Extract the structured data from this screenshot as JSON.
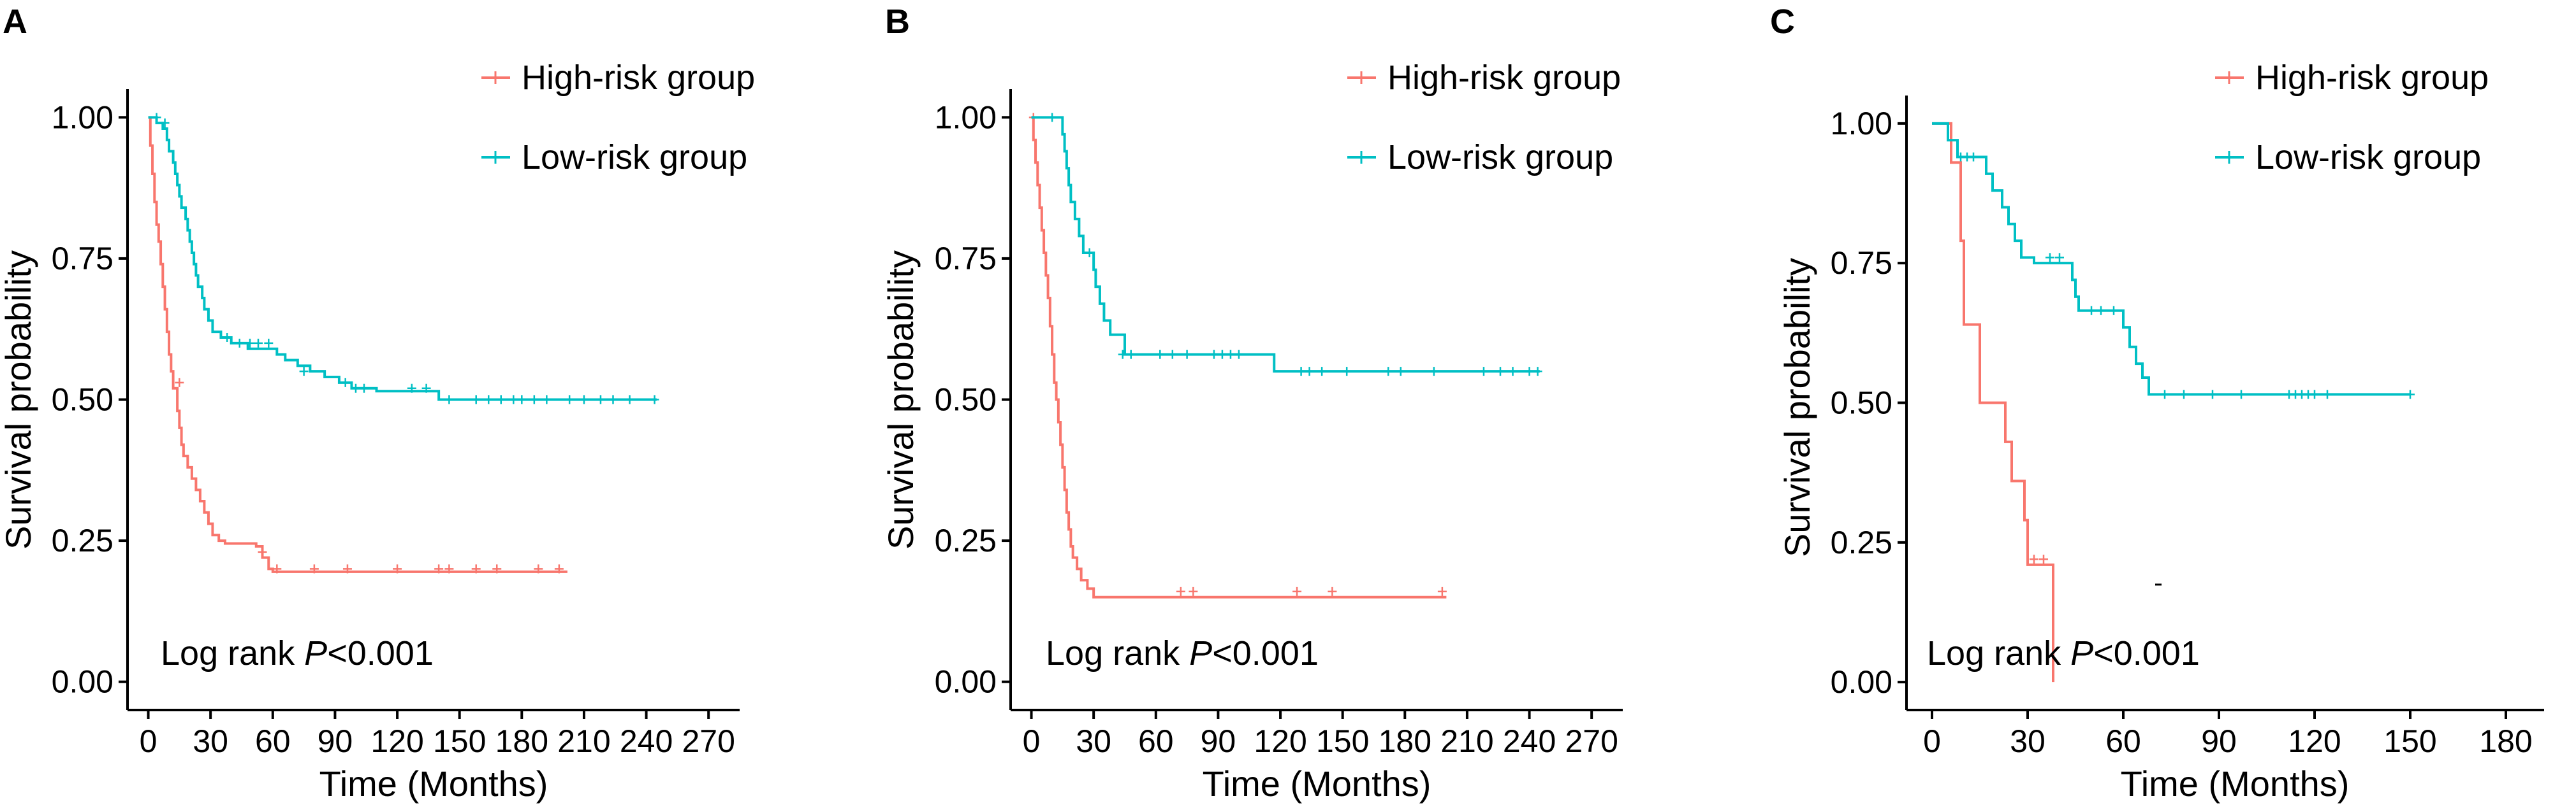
{
  "colors": {
    "high": "#F8766D",
    "low": "#00BFC4",
    "axis": "#000000"
  },
  "chart_data": [
    {
      "type": "line",
      "panel_label": "A",
      "xlabel": "Time (Months)",
      "ylabel": "Survival probability",
      "xticks": [
        0,
        30,
        60,
        90,
        120,
        150,
        180,
        210,
        240,
        270
      ],
      "xtick_labels": [
        "0",
        "30",
        "60",
        "90",
        "120",
        "150",
        "180",
        "210",
        "240",
        "270"
      ],
      "yticks": [
        0,
        0.25,
        0.5,
        0.75,
        1.0
      ],
      "ytick_labels": [
        "0.00",
        "0.25",
        "0.50",
        "0.75",
        "1.00"
      ],
      "xlim": [
        -10,
        285
      ],
      "ylim": [
        -0.05,
        1.05
      ],
      "legend": [
        "High-risk group",
        "Low-risk group"
      ],
      "annotation": {
        "prefix": "Log rank ",
        "italic": "P",
        "suffix": "<0.001"
      },
      "series": [
        {
          "name": "High-risk group",
          "color_key": "high",
          "steps": [
            [
              0,
              1.0
            ],
            [
              1,
              0.95
            ],
            [
              2,
              0.9
            ],
            [
              3,
              0.85
            ],
            [
              4,
              0.81
            ],
            [
              5,
              0.78
            ],
            [
              6,
              0.74
            ],
            [
              7,
              0.7
            ],
            [
              8,
              0.66
            ],
            [
              9,
              0.62
            ],
            [
              10,
              0.58
            ],
            [
              11,
              0.55
            ],
            [
              12,
              0.52
            ],
            [
              14,
              0.48
            ],
            [
              15,
              0.45
            ],
            [
              16,
              0.42
            ],
            [
              17,
              0.4
            ],
            [
              19,
              0.38
            ],
            [
              21,
              0.36
            ],
            [
              23,
              0.34
            ],
            [
              25,
              0.32
            ],
            [
              27,
              0.3
            ],
            [
              29,
              0.28
            ],
            [
              31,
              0.26
            ],
            [
              34,
              0.25
            ],
            [
              37,
              0.245
            ],
            [
              52,
              0.24
            ],
            [
              55,
              0.22
            ],
            [
              58,
              0.2
            ],
            [
              60,
              0.195
            ],
            [
              202,
              0.195
            ]
          ],
          "censors": [
            [
              15,
              0.53
            ],
            [
              55,
              0.23
            ],
            [
              62,
              0.2
            ],
            [
              80,
              0.2
            ],
            [
              96,
              0.2
            ],
            [
              120,
              0.2
            ],
            [
              140,
              0.2
            ],
            [
              145,
              0.2
            ],
            [
              158,
              0.2
            ],
            [
              168,
              0.2
            ],
            [
              188,
              0.2
            ],
            [
              198,
              0.2
            ]
          ]
        },
        {
          "name": "Low-risk group",
          "color_key": "low",
          "steps": [
            [
              0,
              1.0
            ],
            [
              4,
              0.99
            ],
            [
              7,
              0.98
            ],
            [
              9,
              0.96
            ],
            [
              10,
              0.94
            ],
            [
              12,
              0.92
            ],
            [
              13,
              0.9
            ],
            [
              14,
              0.88
            ],
            [
              15,
              0.86
            ],
            [
              16,
              0.84
            ],
            [
              18,
              0.82
            ],
            [
              19,
              0.8
            ],
            [
              20,
              0.78
            ],
            [
              21,
              0.76
            ],
            [
              22,
              0.74
            ],
            [
              23,
              0.72
            ],
            [
              24,
              0.7
            ],
            [
              26,
              0.68
            ],
            [
              27,
              0.66
            ],
            [
              29,
              0.64
            ],
            [
              31,
              0.62
            ],
            [
              35,
              0.61
            ],
            [
              40,
              0.6
            ],
            [
              48,
              0.59
            ],
            [
              62,
              0.58
            ],
            [
              66,
              0.57
            ],
            [
              72,
              0.56
            ],
            [
              78,
              0.55
            ],
            [
              85,
              0.54
            ],
            [
              92,
              0.53
            ],
            [
              98,
              0.52
            ],
            [
              110,
              0.515
            ],
            [
              140,
              0.5
            ],
            [
              245,
              0.5
            ]
          ],
          "censors": [
            [
              4,
              1.0
            ],
            [
              8,
              0.99
            ],
            [
              38,
              0.61
            ],
            [
              44,
              0.6
            ],
            [
              49,
              0.6
            ],
            [
              53,
              0.6
            ],
            [
              58,
              0.6
            ],
            [
              75,
              0.55
            ],
            [
              95,
              0.53
            ],
            [
              100,
              0.52
            ],
            [
              104,
              0.52
            ],
            [
              127,
              0.52
            ],
            [
              134,
              0.52
            ],
            [
              145,
              0.5
            ],
            [
              158,
              0.5
            ],
            [
              164,
              0.5
            ],
            [
              170,
              0.5
            ],
            [
              176,
              0.5
            ],
            [
              180,
              0.5
            ],
            [
              186,
              0.5
            ],
            [
              192,
              0.5
            ],
            [
              203,
              0.5
            ],
            [
              210,
              0.5
            ],
            [
              218,
              0.5
            ],
            [
              224,
              0.5
            ],
            [
              232,
              0.5
            ],
            [
              244,
              0.5
            ]
          ]
        }
      ]
    },
    {
      "type": "line",
      "panel_label": "B",
      "xlabel": "Time (Months)",
      "ylabel": "Survival probability",
      "xticks": [
        0,
        30,
        60,
        90,
        120,
        150,
        180,
        210,
        240,
        270
      ],
      "xtick_labels": [
        "0",
        "30",
        "60",
        "90",
        "120",
        "150",
        "180",
        "210",
        "240",
        "270"
      ],
      "yticks": [
        0,
        0.25,
        0.5,
        0.75,
        1.0
      ],
      "ytick_labels": [
        "0.00",
        "0.25",
        "0.50",
        "0.75",
        "1.00"
      ],
      "xlim": [
        -10,
        285
      ],
      "ylim": [
        -0.05,
        1.05
      ],
      "legend": [
        "High-risk group",
        "Low-risk group"
      ],
      "annotation": {
        "prefix": "Log rank ",
        "italic": "P",
        "suffix": "<0.001"
      },
      "series": [
        {
          "name": "High-risk group",
          "color_key": "high",
          "steps": [
            [
              0,
              1.0
            ],
            [
              1,
              0.96
            ],
            [
              2,
              0.92
            ],
            [
              3,
              0.88
            ],
            [
              4,
              0.84
            ],
            [
              5,
              0.8
            ],
            [
              6,
              0.76
            ],
            [
              7,
              0.72
            ],
            [
              8,
              0.68
            ],
            [
              9,
              0.63
            ],
            [
              10,
              0.58
            ],
            [
              11,
              0.53
            ],
            [
              12,
              0.5
            ],
            [
              13,
              0.46
            ],
            [
              14,
              0.42
            ],
            [
              15,
              0.38
            ],
            [
              16,
              0.34
            ],
            [
              17,
              0.3
            ],
            [
              18,
              0.27
            ],
            [
              19,
              0.24
            ],
            [
              20,
              0.22
            ],
            [
              22,
              0.2
            ],
            [
              24,
              0.18
            ],
            [
              27,
              0.165
            ],
            [
              30,
              0.15
            ],
            [
              200,
              0.15
            ]
          ],
          "censors": [
            [
              1,
              1.0
            ],
            [
              72,
              0.16
            ],
            [
              78,
              0.16
            ],
            [
              128,
              0.16
            ],
            [
              145,
              0.16
            ],
            [
              198,
              0.16
            ]
          ]
        },
        {
          "name": "Low-risk group",
          "color_key": "low",
          "steps": [
            [
              0,
              1.0
            ],
            [
              15,
              0.97
            ],
            [
              16,
              0.94
            ],
            [
              17,
              0.91
            ],
            [
              18,
              0.88
            ],
            [
              19,
              0.85
            ],
            [
              21,
              0.82
            ],
            [
              23,
              0.79
            ],
            [
              25,
              0.76
            ],
            [
              30,
              0.73
            ],
            [
              31,
              0.7
            ],
            [
              33,
              0.67
            ],
            [
              35,
              0.64
            ],
            [
              38,
              0.615
            ],
            [
              45,
              0.58
            ],
            [
              117,
              0.55
            ],
            [
              245,
              0.55
            ]
          ],
          "censors": [
            [
              10,
              1.0
            ],
            [
              28,
              0.76
            ],
            [
              44,
              0.58
            ],
            [
              48,
              0.58
            ],
            [
              62,
              0.58
            ],
            [
              68,
              0.58
            ],
            [
              75,
              0.58
            ],
            [
              88,
              0.58
            ],
            [
              92,
              0.58
            ],
            [
              96,
              0.58
            ],
            [
              100,
              0.58
            ],
            [
              130,
              0.55
            ],
            [
              134,
              0.55
            ],
            [
              140,
              0.55
            ],
            [
              152,
              0.55
            ],
            [
              172,
              0.55
            ],
            [
              178,
              0.55
            ],
            [
              194,
              0.55
            ],
            [
              218,
              0.55
            ],
            [
              226,
              0.55
            ],
            [
              232,
              0.55
            ],
            [
              240,
              0.55
            ],
            [
              244,
              0.55
            ]
          ]
        }
      ]
    },
    {
      "type": "line",
      "panel_label": "C",
      "xlabel": "Time (Months)",
      "ylabel": "Survival probability",
      "xticks": [
        0,
        30,
        60,
        90,
        120,
        150,
        180
      ],
      "xtick_labels": [
        "0",
        "30",
        "60",
        "90",
        "120",
        "150",
        "180"
      ],
      "yticks": [
        0,
        0.25,
        0.5,
        0.75,
        1.0
      ],
      "ytick_labels": [
        "0.00",
        "0.25",
        "0.50",
        "0.75",
        "1.00"
      ],
      "xlim": [
        -8,
        192
      ],
      "ylim": [
        -0.05,
        1.05
      ],
      "legend": [
        "High-risk group",
        "Low-risk group"
      ],
      "annotation": {
        "prefix": "Log rank ",
        "italic": "P",
        "suffix": "<0.001"
      },
      "series": [
        {
          "name": "High-risk group",
          "color_key": "high",
          "steps": [
            [
              0,
              1.0
            ],
            [
              6,
              0.93
            ],
            [
              9,
              0.79
            ],
            [
              10,
              0.64
            ],
            [
              15,
              0.5
            ],
            [
              23,
              0.43
            ],
            [
              25,
              0.36
            ],
            [
              29,
              0.29
            ],
            [
              30,
              0.21
            ],
            [
              38,
              0.0
            ]
          ],
          "censors": [
            [
              32,
              0.22
            ],
            [
              35,
              0.22
            ]
          ]
        },
        {
          "name": "Low-risk group",
          "color_key": "low",
          "steps": [
            [
              0,
              1.0
            ],
            [
              5,
              0.97
            ],
            [
              8,
              0.94
            ],
            [
              17,
              0.91
            ],
            [
              19,
              0.88
            ],
            [
              22,
              0.85
            ],
            [
              24,
              0.82
            ],
            [
              26,
              0.79
            ],
            [
              28,
              0.76
            ],
            [
              32,
              0.75
            ],
            [
              44,
              0.72
            ],
            [
              45,
              0.69
            ],
            [
              46,
              0.665
            ],
            [
              60,
              0.635
            ],
            [
              62,
              0.6
            ],
            [
              64,
              0.57
            ],
            [
              66,
              0.545
            ],
            [
              68,
              0.515
            ],
            [
              150,
              0.515
            ]
          ],
          "censors": [
            [
              9,
              0.94
            ],
            [
              11,
              0.94
            ],
            [
              13,
              0.94
            ],
            [
              37,
              0.76
            ],
            [
              40,
              0.76
            ],
            [
              50,
              0.665
            ],
            [
              53,
              0.665
            ],
            [
              57,
              0.665
            ],
            [
              73,
              0.515
            ],
            [
              79,
              0.515
            ],
            [
              88,
              0.515
            ],
            [
              97,
              0.515
            ],
            [
              112,
              0.515
            ],
            [
              114,
              0.515
            ],
            [
              116,
              0.515
            ],
            [
              118,
              0.515
            ],
            [
              120,
              0.515
            ],
            [
              124,
              0.515
            ],
            [
              150,
              0.515
            ]
          ]
        }
      ]
    }
  ]
}
